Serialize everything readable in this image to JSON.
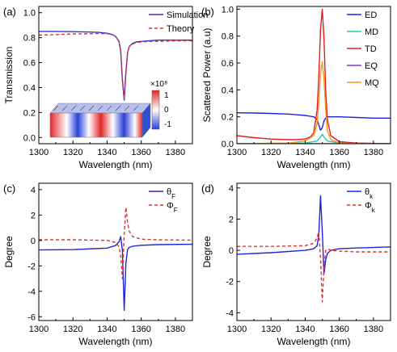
{
  "chart_data": [
    {
      "panel_label": "(a)",
      "type": "line",
      "xlabel": "Wavelength (nm)",
      "ylabel": "Transmission",
      "xlim": [
        1300,
        1390
      ],
      "ylim": [
        -0.05,
        1.05
      ],
      "xticks": [
        "1300",
        "1320",
        "1340",
        "1360",
        "1380"
      ],
      "yticks": [
        "0.0",
        "0.2",
        "0.4",
        "0.6",
        "0.8",
        "1.0"
      ],
      "legend_position": "top-right",
      "series": [
        {
          "name": "Simulation",
          "color": "#3333dd",
          "dash": "solid",
          "x": [
            1300,
            1310,
            1320,
            1330,
            1335,
            1340,
            1343,
            1345,
            1347,
            1348,
            1349,
            1350,
            1351,
            1352,
            1353,
            1355,
            1357,
            1360,
            1365,
            1370,
            1380,
            1390
          ],
          "y": [
            0.85,
            0.85,
            0.848,
            0.845,
            0.842,
            0.835,
            0.825,
            0.81,
            0.77,
            0.69,
            0.46,
            0.3,
            0.52,
            0.68,
            0.73,
            0.755,
            0.765,
            0.77,
            0.775,
            0.78,
            0.78,
            0.78
          ]
        },
        {
          "name": "Theory",
          "color": "#e03030",
          "dash": "dashed",
          "x": [
            1300,
            1310,
            1320,
            1330,
            1335,
            1340,
            1343,
            1345,
            1347,
            1348,
            1349,
            1350,
            1351,
            1352,
            1353,
            1355,
            1357,
            1360,
            1365,
            1370,
            1380,
            1390
          ],
          "y": [
            0.82,
            0.825,
            0.83,
            0.832,
            0.833,
            0.832,
            0.825,
            0.81,
            0.77,
            0.69,
            0.47,
            0.31,
            0.52,
            0.68,
            0.73,
            0.75,
            0.76,
            0.765,
            0.77,
            0.77,
            0.775,
            0.775
          ]
        }
      ],
      "inset": {
        "type": "heatmap",
        "colorbar_title": "×10⁸",
        "colorbar_ticks": [
          "1",
          "0",
          "-1"
        ],
        "colors": [
          "#2a3fd8",
          "#ffffff",
          "#e0282a"
        ]
      }
    },
    {
      "panel_label": "(b)",
      "type": "line",
      "xlabel": "Wavelength (nm)",
      "ylabel": "Scattered Power (a.u)",
      "xlim": [
        1300,
        1390
      ],
      "ylim": [
        0,
        1.02
      ],
      "xticks": [
        "1300",
        "1320",
        "1340",
        "1360",
        "1380"
      ],
      "yticks": [
        "0.0",
        "0.2",
        "0.4",
        "0.6",
        "0.8",
        "1.0"
      ],
      "legend_position": "top-right",
      "series": [
        {
          "name": "ED",
          "color": "#2222dd",
          "x": [
            1300,
            1310,
            1320,
            1330,
            1340,
            1345,
            1347,
            1348,
            1349,
            1350,
            1351,
            1352,
            1353,
            1355,
            1360,
            1370,
            1380,
            1390
          ],
          "y": [
            0.23,
            0.228,
            0.225,
            0.22,
            0.21,
            0.2,
            0.18,
            0.14,
            0.1,
            0.12,
            0.17,
            0.19,
            0.2,
            0.2,
            0.2,
            0.195,
            0.19,
            0.19
          ]
        },
        {
          "name": "MD",
          "color": "#22ccaa",
          "x": [
            1300,
            1340,
            1347,
            1349,
            1350,
            1351,
            1353,
            1360,
            1390
          ],
          "y": [
            0.0,
            0.005,
            0.02,
            0.05,
            0.07,
            0.05,
            0.02,
            0.005,
            0.0
          ]
        },
        {
          "name": "TD",
          "color": "#e02020",
          "x": [
            1300,
            1310,
            1320,
            1330,
            1335,
            1340,
            1343,
            1345,
            1347,
            1348,
            1349,
            1350,
            1351,
            1352,
            1353,
            1355,
            1360,
            1370,
            1390
          ],
          "y": [
            0.06,
            0.045,
            0.035,
            0.03,
            0.03,
            0.035,
            0.05,
            0.08,
            0.25,
            0.5,
            0.85,
            1.0,
            0.78,
            0.4,
            0.18,
            0.06,
            0.015,
            0.005,
            0.0
          ]
        },
        {
          "name": "EQ",
          "color": "#8833cc",
          "x": [
            1300,
            1390
          ],
          "y": [
            0.0,
            0.0
          ]
        },
        {
          "name": "MQ",
          "color": "#ee9922",
          "x": [
            1300,
            1330,
            1340,
            1345,
            1347,
            1348,
            1349,
            1350,
            1351,
            1352,
            1353,
            1355,
            1360,
            1370,
            1390
          ],
          "y": [
            0.0,
            0.005,
            0.02,
            0.06,
            0.15,
            0.3,
            0.52,
            0.61,
            0.48,
            0.25,
            0.1,
            0.03,
            0.005,
            0.0,
            0.0
          ]
        }
      ]
    },
    {
      "panel_label": "(c)",
      "type": "line",
      "xlabel": "Wavelength (nm)",
      "ylabel": "Degree",
      "xlim": [
        1300,
        1390
      ],
      "ylim": [
        -6.3,
        4.5
      ],
      "xticks": [
        "1300",
        "1320",
        "1340",
        "1360",
        "1380"
      ],
      "yticks": [
        "-6",
        "-4",
        "-2",
        "0",
        "2",
        "4"
      ],
      "legend_position": "top-right",
      "series": [
        {
          "name": "θF",
          "color": "#2222dd",
          "dash": "solid",
          "x": [
            1300,
            1320,
            1340,
            1345,
            1347,
            1348,
            1349,
            1350,
            1351,
            1352,
            1353,
            1355,
            1360,
            1370,
            1390
          ],
          "y": [
            -0.75,
            -0.72,
            -0.6,
            -0.4,
            -0.1,
            0.3,
            -0.8,
            -5.5,
            -1.8,
            -0.7,
            -0.55,
            -0.45,
            -0.38,
            -0.33,
            -0.3
          ]
        },
        {
          "name": "ΦF",
          "color": "#e03030",
          "dash": "dashed",
          "x": [
            1300,
            1320,
            1340,
            1345,
            1347,
            1348,
            1349,
            1350,
            1351,
            1352,
            1353,
            1355,
            1360,
            1370,
            1390
          ],
          "y": [
            0.05,
            0.05,
            0.0,
            -0.15,
            -0.5,
            -1.2,
            -3.0,
            0.5,
            2.6,
            1.4,
            0.7,
            0.3,
            0.1,
            0.05,
            0.02
          ]
        }
      ]
    },
    {
      "panel_label": "(d)",
      "type": "line",
      "xlabel": "Wavelength (nm)",
      "ylabel": "Degree",
      "xlim": [
        1300,
        1390
      ],
      "ylim": [
        -4.5,
        4.3
      ],
      "xticks": [
        "1300",
        "1320",
        "1340",
        "1360",
        "1380"
      ],
      "yticks": [
        "-4",
        "-2",
        "0",
        "2",
        "4"
      ],
      "legend_position": "top-right",
      "series": [
        {
          "name": "θk",
          "color": "#2222dd",
          "dash": "solid",
          "x": [
            1300,
            1320,
            1340,
            1345,
            1347,
            1348,
            1349,
            1350,
            1351,
            1352,
            1353,
            1355,
            1360,
            1370,
            1390
          ],
          "y": [
            -0.25,
            -0.15,
            0.0,
            0.1,
            0.3,
            1.0,
            3.5,
            1.2,
            -1.5,
            -0.6,
            -0.2,
            0.0,
            0.1,
            0.15,
            0.22
          ]
        },
        {
          "name": "Φk",
          "color": "#e03030",
          "dash": "dashed",
          "x": [
            1300,
            1320,
            1340,
            1345,
            1347,
            1348,
            1349,
            1350,
            1351,
            1352,
            1353,
            1355,
            1360,
            1370,
            1390
          ],
          "y": [
            0.25,
            0.25,
            0.3,
            0.45,
            0.8,
            1.2,
            -0.5,
            -3.3,
            -1.0,
            0.0,
            0.1,
            0.0,
            -0.05,
            -0.1,
            -0.1
          ]
        }
      ]
    }
  ]
}
